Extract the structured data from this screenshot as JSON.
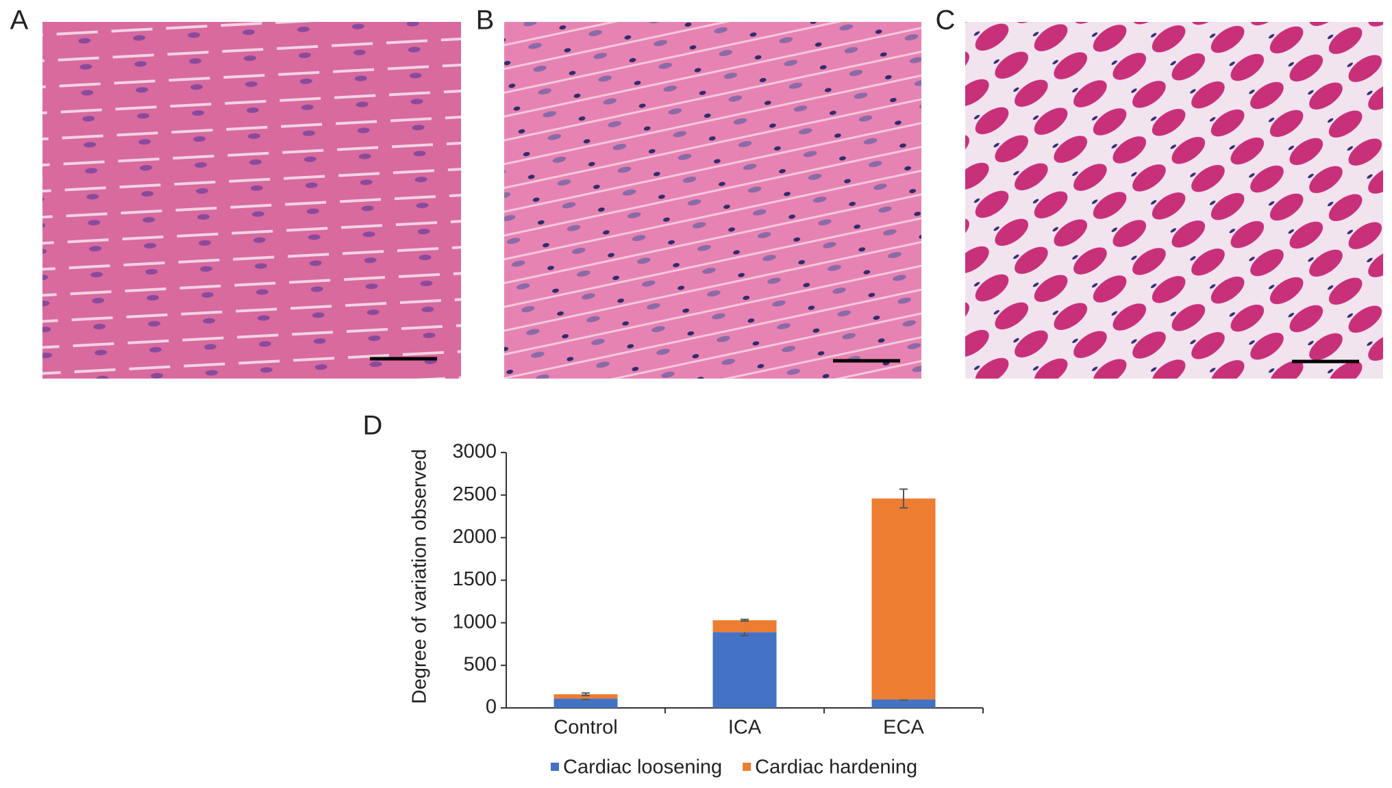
{
  "panel_labels": [
    "A",
    "B",
    "C"
  ],
  "chart_data": {
    "type": "bar",
    "stacked": true,
    "panel_label": "D",
    "ylabel": "Degree of variation observed",
    "categories": [
      "Control",
      "ICA",
      "ECA"
    ],
    "series": [
      {
        "name": "Cardiac loosening",
        "color": "#4472c4",
        "values": [
          110,
          890,
          100
        ],
        "errors": [
          10,
          40,
          5
        ]
      },
      {
        "name": "Cardiac hardening",
        "color": "#ed7d31",
        "values": [
          50,
          140,
          2360
        ],
        "errors": [
          15,
          10,
          110
        ]
      }
    ],
    "ylim": [
      0,
      3000
    ],
    "yticks": [
      0,
      500,
      1000,
      1500,
      2000,
      2500,
      3000
    ],
    "grid": false,
    "legend": "bottom"
  }
}
